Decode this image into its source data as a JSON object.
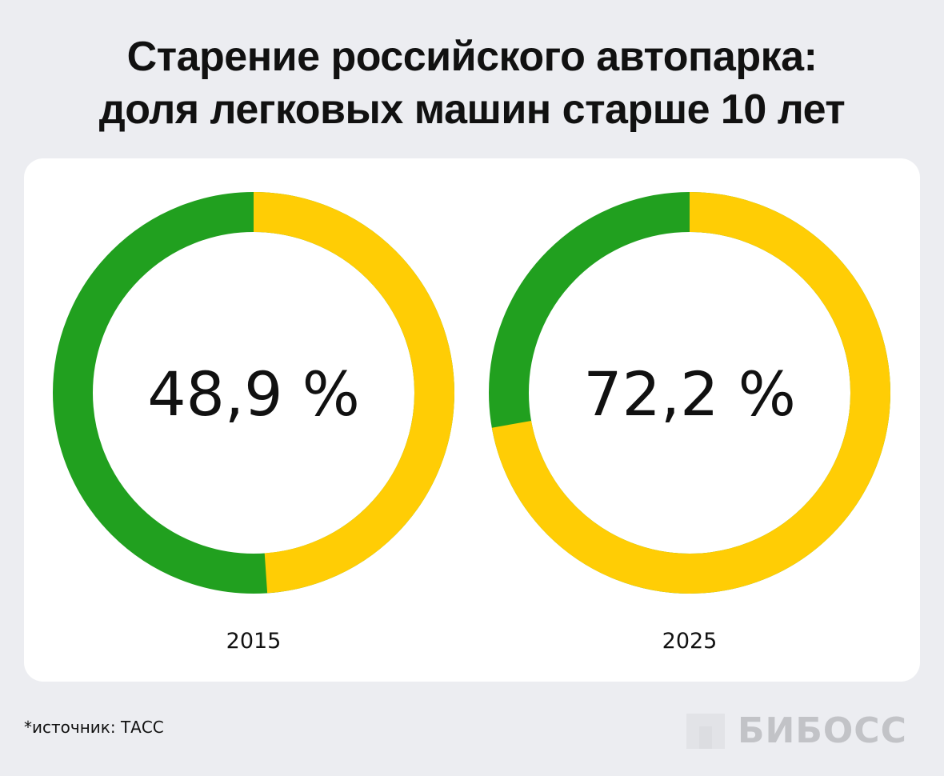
{
  "title_line1": "Старение российского автопарка:",
  "title_line2": "доля легковых машин старше 10 лет",
  "chart_data": {
    "type": "pie",
    "variant": "donut",
    "charts": [
      {
        "category": "2015",
        "value": 48.9,
        "label": "48,9 %"
      },
      {
        "category": "2025",
        "value": 72.2,
        "label": "72,2 %"
      }
    ],
    "unit": "%",
    "colors": {
      "value": "#ffcd05",
      "remainder": "#21a01f"
    }
  },
  "footnote": "*источник: ТАСС",
  "logo": "БИБОСС"
}
